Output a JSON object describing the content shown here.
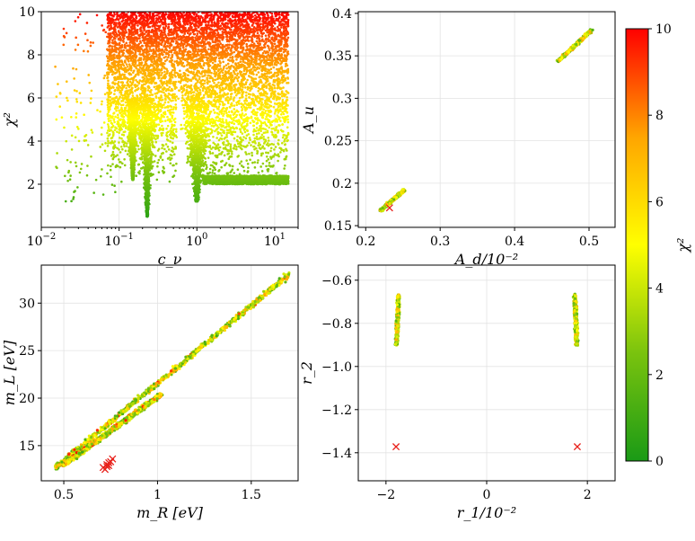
{
  "chart_data": [
    {
      "id": "top-left",
      "type": "scatter",
      "xlabel": "c_ν",
      "ylabel": "χ²",
      "xscale": "log",
      "xlim": [
        0.01,
        20
      ],
      "ylim": [
        0,
        10
      ],
      "xticks": [
        {
          "v": 0.01,
          "b": "10",
          "e": "−2"
        },
        {
          "v": 0.1,
          "b": "10",
          "e": "−1"
        },
        {
          "v": 1,
          "b": "10",
          "e": "0"
        },
        {
          "v": 10,
          "b": "10",
          "e": "1"
        }
      ],
      "yticks": [
        2,
        4,
        6,
        8,
        10
      ],
      "grid": true,
      "density_note": "dense cloud of points across 0.02–15 with narrow dips near c_ν≈0.15, 0.23 and 1.0",
      "dips": [
        {
          "x": 0.15,
          "ymin": 2.2
        },
        {
          "x": 0.23,
          "ymin": 0.5
        },
        {
          "x": 1.0,
          "ymin": 1.2
        }
      ]
    },
    {
      "id": "top-right",
      "type": "scatter",
      "xlabel": "A_d/10⁻²",
      "ylabel": "A_u",
      "xlim": [
        0.19,
        0.535
      ],
      "ylim": [
        0.148,
        0.402
      ],
      "xticks": [
        0.2,
        0.3,
        0.4,
        0.5
      ],
      "yticks": [
        0.15,
        0.2,
        0.25,
        0.3,
        0.35,
        0.4
      ],
      "grid": true,
      "segments": [
        {
          "x0": 0.22,
          "y0": 0.168,
          "x1": 0.252,
          "y1": 0.192
        },
        {
          "x0": 0.459,
          "y0": 0.344,
          "x1": 0.503,
          "y1": 0.38
        }
      ],
      "best_fit_markers": [
        {
          "x": 0.232,
          "y": 0.171
        }
      ]
    },
    {
      "id": "bottom-left",
      "type": "scatter",
      "xlabel": "m_R [eV]",
      "ylabel": "m_L [eV]",
      "xlim": [
        0.38,
        1.75
      ],
      "ylim": [
        11.3,
        34
      ],
      "xticks": [
        0.5,
        1.0,
        1.5
      ],
      "yticks": [
        15,
        20,
        25,
        30
      ],
      "grid": true,
      "bands": [
        {
          "x0": 0.45,
          "y0": 12.6,
          "x1": 1.7,
          "y1": 33.0
        },
        {
          "x0": 0.5,
          "y0": 13.0,
          "x1": 1.02,
          "y1": 20.4
        }
      ],
      "best_fit_markers": [
        {
          "x": 0.71,
          "y": 12.7
        },
        {
          "x": 0.73,
          "y": 13.0
        },
        {
          "x": 0.74,
          "y": 12.9
        },
        {
          "x": 0.75,
          "y": 13.3
        },
        {
          "x": 0.72,
          "y": 12.5
        },
        {
          "x": 0.76,
          "y": 13.6
        },
        {
          "x": 0.74,
          "y": 13.2
        },
        {
          "x": 0.73,
          "y": 12.8
        }
      ]
    },
    {
      "id": "bottom-right",
      "type": "scatter",
      "xlabel": "r_1/10⁻²",
      "ylabel": "r_2",
      "xlim": [
        -2.55,
        2.55
      ],
      "ylim": [
        -1.53,
        -0.53
      ],
      "xticks": [
        {
          "v": -2,
          "t": "−2"
        },
        {
          "v": 0,
          "t": "0"
        },
        {
          "v": 2,
          "t": "2"
        }
      ],
      "yticks": [
        {
          "v": -1.4,
          "t": "−1.4"
        },
        {
          "v": -1.2,
          "t": "−1.2"
        },
        {
          "v": -1.0,
          "t": "−1.0"
        },
        {
          "v": -0.8,
          "t": "−0.8"
        },
        {
          "v": -0.6,
          "t": "−0.6"
        }
      ],
      "grid": true,
      "segments": [
        {
          "x0": -1.75,
          "y0": -0.67,
          "x1": -1.79,
          "y1": -0.9
        },
        {
          "x0": 1.75,
          "y0": -0.67,
          "x1": 1.79,
          "y1": -0.9
        }
      ],
      "best_fit_markers": [
        {
          "x": -1.8,
          "y": -1.372
        },
        {
          "x": 1.8,
          "y": -1.372
        }
      ]
    }
  ],
  "colorbar": {
    "label": "χ²",
    "range": [
      0,
      10
    ],
    "ticks": [
      0,
      2,
      4,
      6,
      8,
      10
    ],
    "colormap": [
      "#1a9a16",
      "#7ac30e",
      "#ffff00",
      "#ffa500",
      "#ff0000"
    ]
  },
  "marker_color": "#e8201a"
}
